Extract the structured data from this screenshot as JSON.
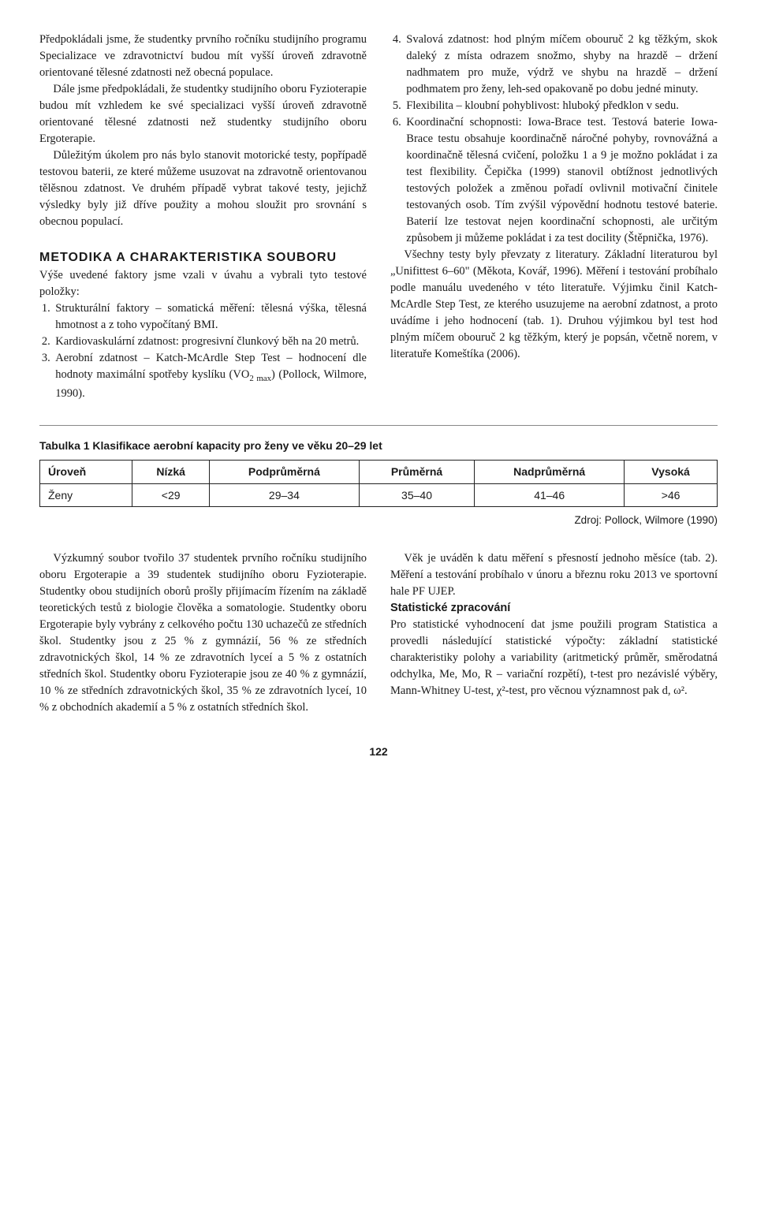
{
  "top": {
    "left": {
      "p1": "Předpokládali jsme, že studentky prvního ročníku studijního programu Specializace ve zdravotnictví budou mít vyšší úroveň zdravotně orientované tělesné zdatnosti než obecná populace.",
      "p2": "Dále jsme předpokládali, že studentky studijního oboru Fyzioterapie budou mít vzhledem ke své specializaci vyšší úroveň zdravotně orientované tělesné zdatnosti než studentky studijního oboru Ergoterapie.",
      "p3": "Důležitým úkolem pro nás bylo stanovit motorické testy, popřípadě testovou baterii, ze které můžeme usuzovat na zdravotně orientovanou tělěsnou zdatnost. Ve druhém případě vybrat takové testy, jejichž výsledky byly již dříve použity a mohou sloužit pro srovnání s obecnou populací.",
      "heading": "METODIKA A CHARAKTERISTIKA SOUBORU",
      "intro": "Výše uvedené faktory jsme vzali v úvahu a vybrali tyto testové položky:",
      "li1": "Strukturální faktory – somatická měření: tělesná výška, tělesná hmotnost a z toho vypočítaný BMI.",
      "li2": "Kardiovaskulární zdatnost: progresivní člunkový běh na 20 metrů.",
      "li3": "Aerobní zdatnost – Katch-McArdle Step Test – hodnocení dle hodnoty maximální spotřeby kyslíku (VO",
      "li3_sub": "2 max",
      "li3_end": ") (Pollock, Wilmore, 1990)."
    },
    "right": {
      "li4": "Svalová zdatnost: hod plným míčem obouruč 2 kg těžkým, skok daleký z místa odrazem snožmo, shyby na hrazdě – držení nadhmatem pro muže, výdrž ve shybu na hrazdě – držení podhmatem pro ženy, leh-sed opakovaně po dobu jedné minuty.",
      "li5": "Flexibilita – kloubní pohyblivost: hluboký předklon v sedu.",
      "li6": "Koordinační schopnosti: Iowa-Brace test. Testová baterie Iowa-Brace testu obsahuje koordinačně náročné pohyby, rovnovážná a koordinačně tělesná cvičení, položku 1 a 9 je možno pokládat i za test flexibility. Čepička (1999) stanovil obtížnost jednotlivých testových položek a změnou pořadí ovlivnil motivační činitele testovaných osob. Tím zvýšil výpovědní hodnotu testové baterie. Baterií lze testovat nejen koordinační schopnosti, ale určitým způsobem ji můžeme pokládat i za test docility (Štěpnička, 1976).",
      "p4": "Všechny testy byly převzaty z literatury. Základní literaturou byl „Unifittest 6–60\" (Měkota, Kovář, 1996). Měření i testování probíhalo podle manuálu uvedeného v této literatuře. Výjimku činil Katch-McArdle Step Test, ze kterého usuzujeme na aerobní zdatnost, a proto uvádíme i jeho hodnocení (tab. 1). Druhou výjimkou byl test hod plným míčem obouruč 2 kg těžkým, který je popsán, včetně norem, v literatuře Komeštíka (2006)."
    }
  },
  "table": {
    "caption": "Tabulka 1 Klasifikace aerobní kapacity pro ženy ve věku 20–29 let",
    "headers": [
      "Úroveň",
      "Nízká",
      "Podprůměrná",
      "Průměrná",
      "Nadprůměrná",
      "Vysoká"
    ],
    "row_label": "Ženy",
    "row": [
      "<29",
      "29–34",
      "35–40",
      "41–46",
      ">46"
    ],
    "source": "Zdroj: Pollock, Wilmore (1990)"
  },
  "bottom": {
    "left": {
      "p1": "Výzkumný soubor tvořilo 37 studentek prvního ročníku studijního oboru Ergoterapie a 39 studentek studijního oboru Fyzioterapie. Studentky obou studijních oborů prošly přijímacím řízením na základě teoretických testů z biologie člověka a somatologie. Studentky oboru Ergoterapie byly vybrány z celkového počtu 130 uchazečů ze středních škol. Studentky jsou z 25 % z gymnázií, 56 % ze středních zdravotnických škol, 14 % ze zdravotních lyceí a 5 % z ostatních středních škol. Studentky oboru Fyzioterapie jsou ze 40 % z gymnázií, 10 % ze středních zdravotnických škol, 35 % ze zdravotních lyceí, 10 % z obchodních akademií a 5 % z ostatních středních škol."
    },
    "right": {
      "p1": "Věk je uváděn k datu měření s přesností jednoho měsíce (tab. 2). Měření a testování probíhalo v únoru a březnu roku 2013 ve sportovní hale PF UJEP.",
      "subhead": "Statistické zpracování",
      "p2": "Pro statistické vyhodnocení dat jsme použili program Statistica a provedli následující statistické výpočty: základní statistické charakteristiky polohy a variability (aritmetický průměr, směrodatná odchylka, Me, Mo, R – variační rozpětí), t-test pro nezávislé výběry, Mann-Whitney U-test, χ²-test, pro věcnou významnost pak d, ω²."
    }
  },
  "page_number": "122"
}
